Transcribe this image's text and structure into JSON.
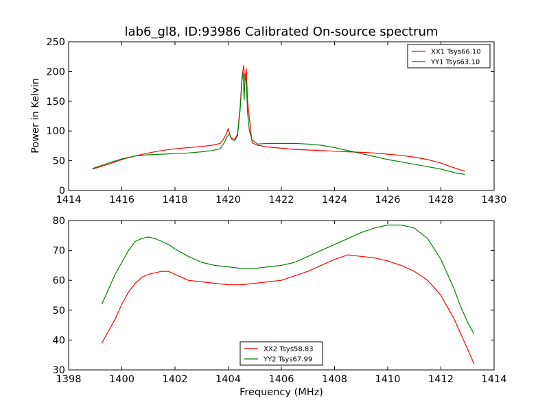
{
  "figure": {
    "title": "lab6_gl8, ID:93986 Calibrated On-source spectrum",
    "background": "#ffffff"
  },
  "chart_data": [
    {
      "type": "line",
      "xlabel": "",
      "ylabel": "Power in Kelvin",
      "xlim": [
        1414,
        1430
      ],
      "ylim": [
        0,
        250
      ],
      "xticks": [
        "1414",
        "1416",
        "1418",
        "1420",
        "1422",
        "1424",
        "1426",
        "1428",
        "1430"
      ],
      "yticks": [
        "0",
        "50",
        "100",
        "150",
        "200",
        "250"
      ],
      "grid": false,
      "legend_position": "top-right",
      "series": [
        {
          "name": "XX1 Tsys66.10",
          "color": "#ff0000",
          "x": [
            1414.9,
            1415.5,
            1416,
            1416.5,
            1417,
            1417.5,
            1418,
            1418.5,
            1419,
            1419.4,
            1419.7,
            1419.85,
            1419.95,
            1420.0,
            1420.1,
            1420.25,
            1420.35,
            1420.45,
            1420.52,
            1420.58,
            1420.63,
            1420.68,
            1420.73,
            1420.8,
            1420.9,
            1421.1,
            1421.5,
            1422,
            1422.5,
            1423,
            1423.5,
            1424,
            1424.5,
            1425,
            1425.5,
            1426,
            1426.5,
            1427,
            1427.5,
            1428,
            1428.5,
            1428.9
          ],
          "y": [
            36,
            44,
            52,
            58,
            63,
            67,
            70,
            72,
            74,
            76,
            79,
            88,
            97,
            104,
            88,
            86,
            95,
            140,
            190,
            210,
            185,
            205,
            150,
            120,
            80,
            76,
            73,
            71,
            69,
            68,
            67,
            66,
            65,
            64,
            63,
            61,
            59,
            56,
            52,
            46,
            38,
            32
          ]
        },
        {
          "name": "YY1 Tsys63.10",
          "color": "#008000",
          "x": [
            1414.9,
            1415.5,
            1416,
            1416.5,
            1417,
            1417.5,
            1418,
            1418.5,
            1419,
            1419.4,
            1419.7,
            1419.85,
            1419.95,
            1420.05,
            1420.15,
            1420.25,
            1420.35,
            1420.45,
            1420.52,
            1420.56,
            1420.6,
            1420.64,
            1420.68,
            1420.73,
            1420.8,
            1420.9,
            1421.1,
            1421.5,
            1422,
            1422.5,
            1423,
            1423.5,
            1424,
            1424.5,
            1425,
            1425.5,
            1426,
            1426.5,
            1427,
            1427.5,
            1428,
            1428.5,
            1428.9
          ],
          "y": [
            37,
            46,
            53,
            58,
            60,
            61,
            62,
            63,
            65,
            67,
            70,
            80,
            90,
            95,
            85,
            84,
            92,
            135,
            185,
            198,
            152,
            195,
            180,
            130,
            100,
            85,
            78,
            79,
            79,
            79,
            78,
            76,
            72,
            67,
            62,
            57,
            52,
            48,
            44,
            40,
            36,
            30,
            27
          ]
        }
      ]
    },
    {
      "type": "line",
      "xlabel": "Frequency (MHz)",
      "ylabel": "",
      "xlim": [
        1398,
        1414
      ],
      "ylim": [
        30,
        80
      ],
      "xticks": [
        "1398",
        "1400",
        "1402",
        "1404",
        "1406",
        "1408",
        "1410",
        "1412",
        "1414"
      ],
      "yticks": [
        "30",
        "40",
        "50",
        "60",
        "70",
        "80"
      ],
      "grid": false,
      "legend_position": "bottom-center",
      "series": [
        {
          "name": "XX2 Tsys58.83",
          "color": "#ff0000",
          "x": [
            1399.25,
            1399.5,
            1399.75,
            1400,
            1400.25,
            1400.5,
            1400.75,
            1401,
            1401.25,
            1401.5,
            1401.75,
            1402,
            1402.5,
            1403,
            1403.5,
            1404,
            1404.5,
            1405,
            1405.5,
            1406,
            1406.5,
            1407,
            1407.5,
            1408,
            1408.5,
            1409,
            1409.5,
            1410,
            1410.5,
            1411,
            1411.5,
            1412,
            1412.25,
            1412.5,
            1412.75,
            1413,
            1413.25
          ],
          "y": [
            39,
            43,
            47,
            52,
            56,
            59,
            61,
            62,
            62.5,
            63,
            63,
            62,
            60,
            59.5,
            59,
            58.5,
            58.5,
            59,
            59.5,
            60,
            61.5,
            63,
            65,
            67,
            68.5,
            68,
            67.5,
            66.5,
            65,
            63,
            60,
            55,
            51,
            47,
            42,
            37,
            32
          ]
        },
        {
          "name": "YY2 Tsys67.99",
          "color": "#008000",
          "x": [
            1399.25,
            1399.5,
            1399.75,
            1400,
            1400.25,
            1400.5,
            1400.75,
            1401,
            1401.25,
            1401.5,
            1401.75,
            1402,
            1402.5,
            1403,
            1403.5,
            1404,
            1404.5,
            1405,
            1405.5,
            1406,
            1406.5,
            1407,
            1407.5,
            1408,
            1408.5,
            1409,
            1409.5,
            1410,
            1410.5,
            1411,
            1411.5,
            1412,
            1412.25,
            1412.5,
            1412.75,
            1413,
            1413.25
          ],
          "y": [
            52,
            57,
            62,
            66,
            70,
            73,
            74,
            74.5,
            74,
            73,
            72,
            70.5,
            68,
            66,
            65,
            64.5,
            64,
            64,
            64.5,
            65,
            66,
            68,
            70,
            72,
            74,
            76,
            77.5,
            78.5,
            78.5,
            77.5,
            74,
            67,
            62,
            57,
            51,
            46,
            42
          ]
        }
      ]
    }
  ]
}
